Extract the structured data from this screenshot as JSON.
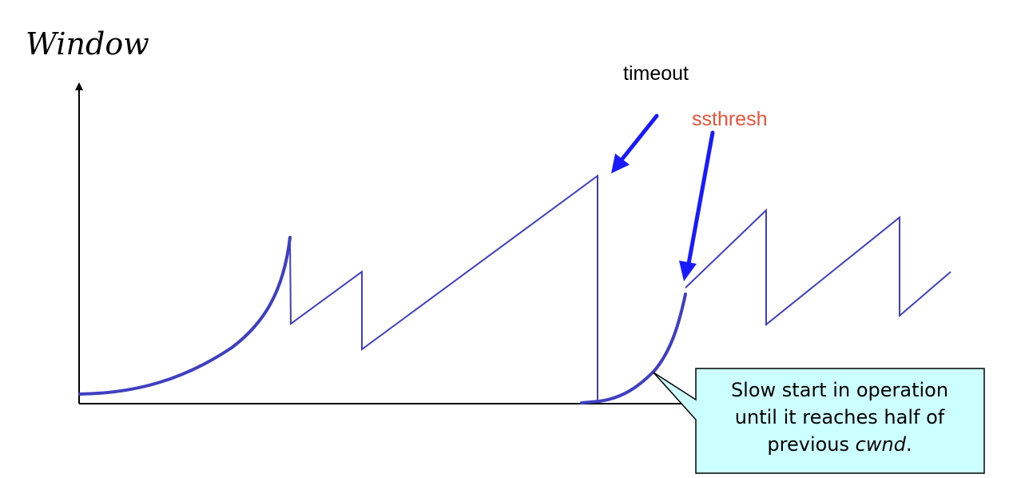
{
  "axis": {
    "y_label": "Window"
  },
  "labels": {
    "timeout": "timeout",
    "ssthresh": "ssthresh"
  },
  "callout": {
    "line1": "Slow start in operation",
    "line2": "until it reaches half of",
    "line3_prefix": "previous ",
    "line3_italic": "cwnd",
    "line3_suffix": "."
  },
  "colors": {
    "curve": "#3f3fc2",
    "arrow": "#1a1aff",
    "ssthresh_label": "#e8533a",
    "callout_fill": "#ccffff"
  }
}
